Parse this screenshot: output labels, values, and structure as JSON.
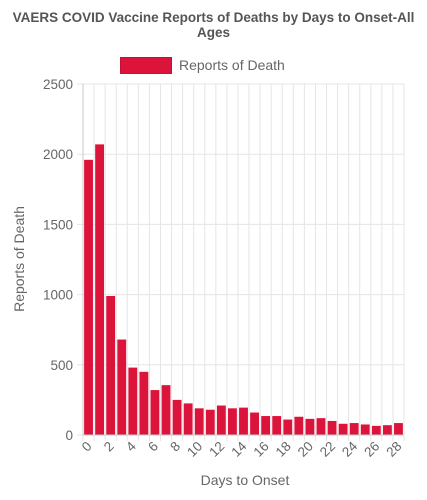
{
  "chart_data": {
    "type": "bar",
    "title": "VAERS COVID Vaccine Reports of Deaths by Days to Onset-All Ages",
    "xlabel": "Days to Onset",
    "ylabel": "Reports of Death",
    "ylim": [
      0,
      2500
    ],
    "yticks": [
      "0",
      "500",
      "1000",
      "1500",
      "2000",
      "2500"
    ],
    "xtick_labels": [
      "0",
      "2",
      "4",
      "6",
      "8",
      "10",
      "12",
      "14",
      "16",
      "18",
      "20",
      "22",
      "24",
      "26",
      "28"
    ],
    "grid": true,
    "legend_position": "top",
    "series": [
      {
        "name": "Reports of Death",
        "color": "#dc143c",
        "values": [
          1960,
          2070,
          990,
          680,
          480,
          450,
          320,
          355,
          250,
          225,
          190,
          180,
          210,
          190,
          195,
          160,
          135,
          135,
          110,
          130,
          115,
          120,
          100,
          80,
          85,
          75,
          65,
          70,
          85
        ]
      }
    ],
    "categories": [
      "0",
      "1",
      "2",
      "3",
      "4",
      "5",
      "6",
      "7",
      "8",
      "9",
      "10",
      "11",
      "12",
      "13",
      "14",
      "15",
      "16",
      "17",
      "18",
      "19",
      "20",
      "21",
      "22",
      "23",
      "24",
      "25",
      "26",
      "27",
      "28"
    ]
  }
}
